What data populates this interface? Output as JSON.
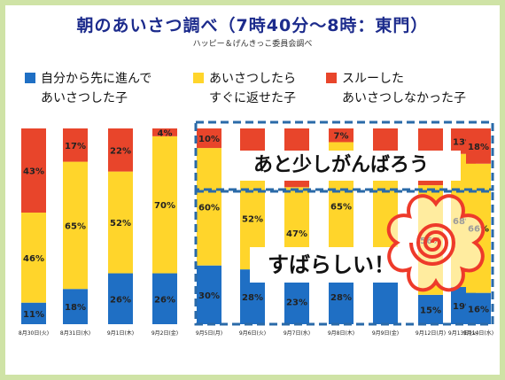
{
  "title": "朝のあいさつ調べ（7時40分～8時：東門）",
  "subtitle": "ハッピー＆げんきっこ委員会調べ",
  "colors": {
    "blue": "#1f6fc4",
    "yellow": "#ffd52b",
    "red": "#e8452b",
    "dash": "#2a6aa8",
    "frame": "#cfe3a6"
  },
  "legend": [
    {
      "color": "#1f6fc4",
      "line1": "自分から先に進んで",
      "line2": "あいさつした子"
    },
    {
      "color": "#ffd52b",
      "line1": "あいさつしたら",
      "line2": "すぐに返せた子"
    },
    {
      "color": "#e8452b",
      "line1": "スルーした",
      "line2": "あいさつしなかった子"
    }
  ],
  "annotations": {
    "top": "あと少しがんばろう",
    "bottom": "すばらしい！"
  },
  "chart_data": {
    "type": "bar",
    "stacked": true,
    "ylim": [
      0,
      100
    ],
    "categories": [
      "8月30日(火)",
      "8月31日(水)",
      "9月1日(木)",
      "9月2日(金)",
      "9月5日(月)",
      "9月6日(火)",
      "9月7日(水)",
      "9月8日(木)",
      "9月9日(金)",
      "9月12日(月)",
      "9月13日(火)",
      "9月14日(水)"
    ],
    "series": [
      {
        "color": "#1f6fc4",
        "values": [
          11,
          18,
          26,
          26,
          30,
          28,
          23,
          28,
          28,
          15,
          19,
          16
        ],
        "labels": [
          "11%",
          "18%",
          "26%",
          "26%",
          "30%",
          "28%",
          "23%",
          "28%",
          "",
          "15%",
          "19%",
          "16%"
        ]
      },
      {
        "color": "#ffd52b",
        "values": [
          46,
          65,
          52,
          70,
          60,
          52,
          47,
          65,
          56,
          56,
          68,
          66
        ],
        "labels": [
          "46%",
          "65%",
          "52%",
          "70%",
          "60%",
          "52%",
          "47%",
          "65%",
          "",
          "56%",
          "68%",
          "66%"
        ]
      },
      {
        "color": "#e8452b",
        "values": [
          43,
          17,
          22,
          4,
          10,
          20,
          30,
          7,
          16,
          29,
          13,
          18
        ],
        "labels": [
          "43%",
          "17%",
          "22%",
          "4%",
          "10%",
          "",
          "",
          "7%",
          "",
          "",
          "13%",
          "18%"
        ]
      }
    ]
  }
}
